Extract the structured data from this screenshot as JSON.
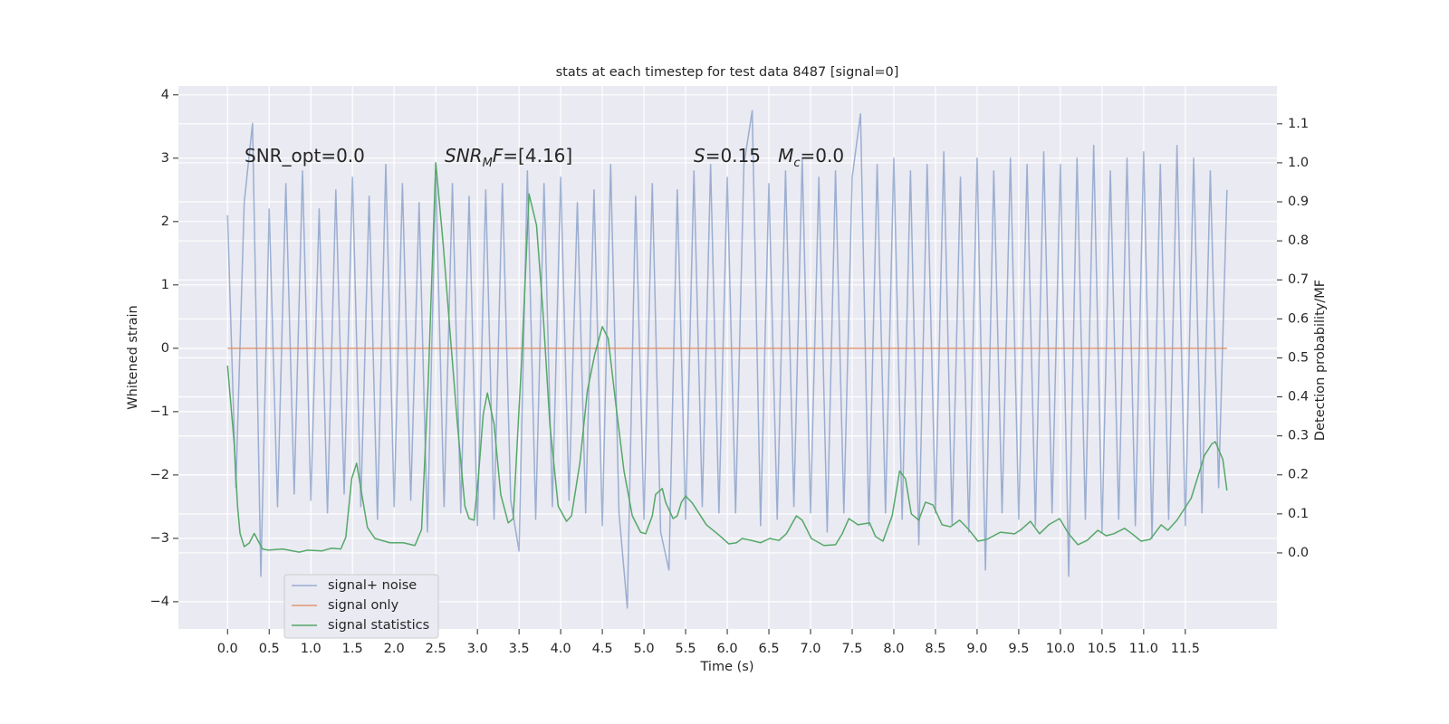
{
  "chart_data": {
    "type": "line",
    "title": "stats at each timestep for test data 8487 [signal=0]",
    "xlabel": "Time (s)",
    "ylabel": "Whitened strain",
    "y2label": "Detection probability/MF",
    "xlim": [
      -0.59,
      12.6
    ],
    "ylim": [
      -4.43,
      4.14
    ],
    "y2lim": [
      -0.195,
      1.197
    ],
    "grid": true,
    "legend": "lower left",
    "xticks": [
      {
        "value": 0,
        "label": "0.0"
      },
      0.5,
      {
        "value": 1,
        "label": "1.0"
      },
      1.5,
      {
        "value": 2,
        "label": "2.0"
      },
      2.5,
      {
        "value": 3,
        "label": "3.0"
      },
      3.5,
      {
        "value": 4,
        "label": "4.0"
      },
      4.5,
      {
        "value": 5,
        "label": "5.0"
      },
      5.5,
      {
        "value": 6,
        "label": "6.0"
      },
      6.5,
      {
        "value": 7,
        "label": "7.0"
      },
      7.5,
      {
        "value": 8,
        "label": "8.0"
      },
      8.5,
      {
        "value": 9,
        "label": "9.0"
      },
      9.5,
      {
        "value": 10,
        "label": "10.0"
      },
      10.5,
      {
        "value": 11,
        "label": "11.0"
      },
      11.5
    ],
    "yticks": [
      {
        "value": -4,
        "label": "−4"
      },
      {
        "value": -3,
        "label": "−3"
      },
      {
        "value": -2,
        "label": "−2"
      },
      {
        "value": -1,
        "label": "−1"
      },
      0,
      1,
      2,
      3,
      4
    ],
    "y2ticks": [
      {
        "value": 0,
        "label": "0.0"
      },
      0.1,
      0.2,
      0.3,
      0.4,
      0.5,
      0.6,
      0.7,
      0.8,
      0.9,
      {
        "value": 1,
        "label": "1.0"
      },
      1.1
    ],
    "annotations": [
      {
        "parts": [
          {
            "text": "SNR_opt=0.0"
          }
        ]
      },
      {
        "parts": [
          {
            "text": "SNR",
            "italic": true
          },
          {
            "text": "M",
            "italic": true,
            "sub": true
          },
          {
            "text": "F",
            "italic": true
          },
          {
            "text": "=[4.16]"
          }
        ]
      },
      {
        "parts": [
          {
            "text": "S",
            "italic": true
          },
          {
            "text": "=0.15   "
          },
          {
            "text": "M",
            "italic": true
          },
          {
            "text": "c",
            "italic": true,
            "sub": true
          },
          {
            "text": "=0.0"
          }
        ]
      }
    ],
    "series": [
      {
        "name": "signal+ noise",
        "color": "#4c72b0",
        "opacity": 0.5,
        "x": [
          0,
          0.1,
          0.2,
          0.3,
          0.4,
          0.5,
          0.6,
          0.7,
          0.8,
          0.9,
          1,
          1.1,
          1.2,
          1.3,
          1.4,
          1.5,
          1.6,
          1.7,
          1.8,
          1.9,
          2,
          2.1,
          2.2,
          2.3,
          2.4,
          2.5,
          2.6,
          2.7,
          2.8,
          2.9,
          3,
          3.1,
          3.2,
          3.3,
          3.4,
          3.5,
          3.6,
          3.7,
          3.8,
          3.9,
          4,
          4.1,
          4.2,
          4.3,
          4.4,
          4.5,
          4.6,
          4.7,
          4.8,
          4.9,
          5,
          5.1,
          5.2,
          5.3,
          5.4,
          5.5,
          5.6,
          5.7,
          5.8,
          5.9,
          6,
          6.1,
          6.2,
          6.3,
          6.4,
          6.5,
          6.6,
          6.7,
          6.8,
          6.9,
          7,
          7.1,
          7.2,
          7.3,
          7.4,
          7.5,
          7.6,
          7.7,
          7.8,
          7.9,
          8,
          8.1,
          8.2,
          8.3,
          8.4,
          8.5,
          8.6,
          8.7,
          8.8,
          8.9,
          9,
          9.1,
          9.2,
          9.3,
          9.4,
          9.5,
          9.6,
          9.7,
          9.8,
          9.9,
          10,
          10.1,
          10.2,
          10.3,
          10.4,
          10.5,
          10.6,
          10.7,
          10.8,
          10.9,
          11,
          11.1,
          11.2,
          11.3,
          11.4,
          11.5,
          11.6,
          11.7,
          11.8,
          11.9,
          12
        ],
        "values": [
          2.1,
          -2.2,
          2.3,
          3.55,
          -3.6,
          2.2,
          -2.5,
          2.6,
          -2.3,
          2.8,
          -2.4,
          2.2,
          -2.6,
          2.5,
          -2.3,
          2.7,
          -2.5,
          2.4,
          -2.7,
          2.9,
          -2.5,
          2.6,
          -2.4,
          2.3,
          -2.9,
          2.7,
          -2.5,
          2.6,
          -2.6,
          2.4,
          -2.8,
          2.5,
          -2.7,
          2.6,
          -2.4,
          -3.2,
          2.8,
          -2.7,
          2.6,
          -2.5,
          2.7,
          -2.4,
          2.3,
          -2.6,
          2.5,
          -2.8,
          2.9,
          -2.6,
          -4.1,
          2.4,
          -2.7,
          2.6,
          -2.9,
          -3.5,
          2.5,
          -2.7,
          2.8,
          -2.5,
          2.9,
          -2.6,
          2.7,
          -2.6,
          2.9,
          3.75,
          -2.8,
          2.6,
          -2.7,
          2.8,
          -2.5,
          3.0,
          -2.6,
          2.7,
          -2.9,
          2.8,
          -2.6,
          2.7,
          3.7,
          -2.8,
          2.9,
          -2.6,
          3.0,
          -2.7,
          2.8,
          -3.1,
          2.9,
          -2.6,
          3.1,
          -2.8,
          2.7,
          -2.9,
          3.0,
          -3.5,
          2.8,
          -2.6,
          3.0,
          -2.7,
          2.9,
          -2.8,
          3.1,
          -2.6,
          2.9,
          -3.6,
          3.0,
          -2.7,
          3.2,
          -2.9,
          2.8,
          -2.7,
          3.0,
          -2.8,
          3.1,
          -3.0,
          2.9,
          -2.7,
          3.2,
          -2.8,
          3.0,
          -2.6,
          2.8,
          -2.2,
          2.5
        ]
      },
      {
        "name": "signal only",
        "color": "#dd8452",
        "opacity": 0.8,
        "x": [
          0,
          12
        ],
        "values": [
          0,
          0
        ]
      },
      {
        "name": "signal statistics",
        "color": "#55a868",
        "opacity": 1,
        "axis": "y2",
        "x": [
          0,
          0.08,
          0.12,
          0.15,
          0.2,
          0.26,
          0.32,
          0.42,
          0.49,
          0.66,
          0.86,
          0.96,
          1.13,
          1.25,
          1.36,
          1.42,
          1.49,
          1.55,
          1.62,
          1.68,
          1.77,
          1.95,
          2.11,
          2.25,
          2.33,
          2.41,
          2.5,
          2.59,
          2.67,
          2.76,
          2.85,
          2.9,
          2.96,
          3.01,
          3.07,
          3.12,
          3.2,
          3.28,
          3.37,
          3.43,
          3.53,
          3.62,
          3.71,
          3.79,
          3.87,
          3.97,
          4.07,
          4.13,
          4.23,
          4.32,
          4.41,
          4.5,
          4.57,
          4.66,
          4.76,
          4.86,
          4.96,
          5.02,
          5.1,
          5.14,
          5.22,
          5.26,
          5.35,
          5.4,
          5.45,
          5.5,
          5.58,
          5.75,
          5.91,
          6.02,
          6.11,
          6.18,
          6.29,
          6.4,
          6.51,
          6.62,
          6.71,
          6.83,
          6.9,
          7.01,
          7.16,
          7.3,
          7.38,
          7.46,
          7.57,
          7.71,
          7.78,
          7.87,
          7.98,
          8.07,
          8.14,
          8.21,
          8.3,
          8.38,
          8.47,
          8.58,
          8.68,
          8.79,
          8.9,
          9.01,
          9.12,
          9.28,
          9.45,
          9.53,
          9.64,
          9.75,
          9.86,
          9.99,
          10.1,
          10.21,
          10.32,
          10.45,
          10.55,
          10.64,
          10.77,
          10.86,
          10.97,
          11.08,
          11.21,
          11.29,
          11.4,
          11.57,
          11.73,
          11.82,
          11.86,
          11.95,
          12.0
        ],
        "values": [
          0.48,
          0.28,
          0.12,
          0.05,
          0.016,
          0.025,
          0.05,
          0.01,
          0.007,
          0.01,
          0.002,
          0.007,
          0.005,
          0.012,
          0.01,
          0.04,
          0.19,
          0.23,
          0.14,
          0.065,
          0.037,
          0.026,
          0.026,
          0.019,
          0.06,
          0.44,
          1.0,
          0.79,
          0.57,
          0.33,
          0.12,
          0.088,
          0.084,
          0.19,
          0.355,
          0.41,
          0.33,
          0.15,
          0.077,
          0.088,
          0.49,
          0.92,
          0.84,
          0.61,
          0.33,
          0.12,
          0.081,
          0.095,
          0.23,
          0.415,
          0.51,
          0.58,
          0.55,
          0.385,
          0.21,
          0.095,
          0.053,
          0.049,
          0.095,
          0.15,
          0.165,
          0.13,
          0.088,
          0.095,
          0.13,
          0.146,
          0.128,
          0.072,
          0.044,
          0.023,
          0.026,
          0.037,
          0.032,
          0.026,
          0.037,
          0.032,
          0.049,
          0.095,
          0.084,
          0.037,
          0.019,
          0.021,
          0.049,
          0.088,
          0.072,
          0.077,
          0.042,
          0.03,
          0.095,
          0.21,
          0.19,
          0.1,
          0.084,
          0.13,
          0.123,
          0.072,
          0.067,
          0.084,
          0.06,
          0.03,
          0.035,
          0.053,
          0.049,
          0.06,
          0.081,
          0.049,
          0.072,
          0.088,
          0.049,
          0.021,
          0.032,
          0.058,
          0.044,
          0.049,
          0.063,
          0.049,
          0.03,
          0.035,
          0.072,
          0.058,
          0.084,
          0.14,
          0.25,
          0.28,
          0.285,
          0.24,
          0.16
        ]
      }
    ]
  }
}
